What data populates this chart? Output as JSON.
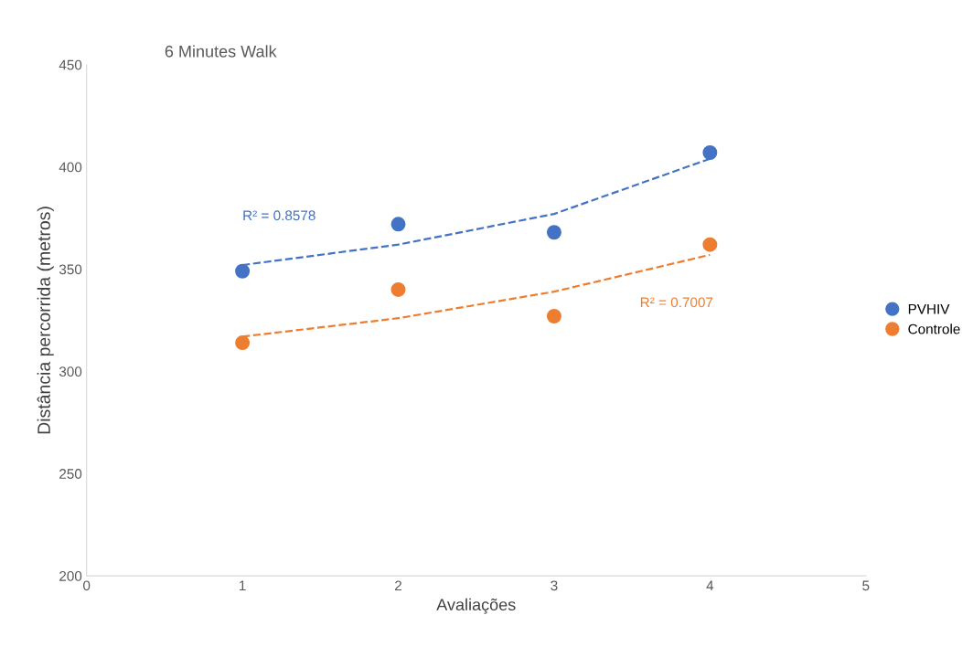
{
  "chart_data": {
    "type": "scatter",
    "title": "6 Minutes Walk",
    "xlabel": "Avaliações",
    "ylabel": "Distância percorrida (metros)",
    "xlim": [
      0,
      5
    ],
    "xticks": [
      0,
      1,
      2,
      3,
      4,
      5
    ],
    "ylim": [
      200,
      450
    ],
    "yticks": [
      200,
      250,
      300,
      350,
      400,
      450
    ],
    "grid": false,
    "legend": "right",
    "marker": "circle",
    "series": [
      {
        "name": "PVHIV",
        "color": "#4472c4",
        "x": [
          1,
          2,
          3,
          4
        ],
        "values": [
          349,
          372,
          368,
          407
        ]
      },
      {
        "name": "Controle",
        "color": "#ed7d31",
        "x": [
          1,
          2,
          3,
          4
        ],
        "values": [
          314,
          340,
          327,
          362
        ]
      },
      {
        "type": "line",
        "line_style": "dashed",
        "marker": "none",
        "color": "#4472c4",
        "x": [
          1,
          2,
          3,
          4
        ],
        "values": [
          352,
          362,
          377,
          404
        ]
      },
      {
        "type": "line",
        "line_style": "dashed",
        "marker": "none",
        "color": "#ed7d31",
        "x": [
          1,
          2,
          3,
          4
        ],
        "values": [
          317,
          326,
          339,
          357
        ]
      }
    ],
    "annotations": [
      "R² = 0.8578",
      "R² = 0.7007"
    ]
  }
}
